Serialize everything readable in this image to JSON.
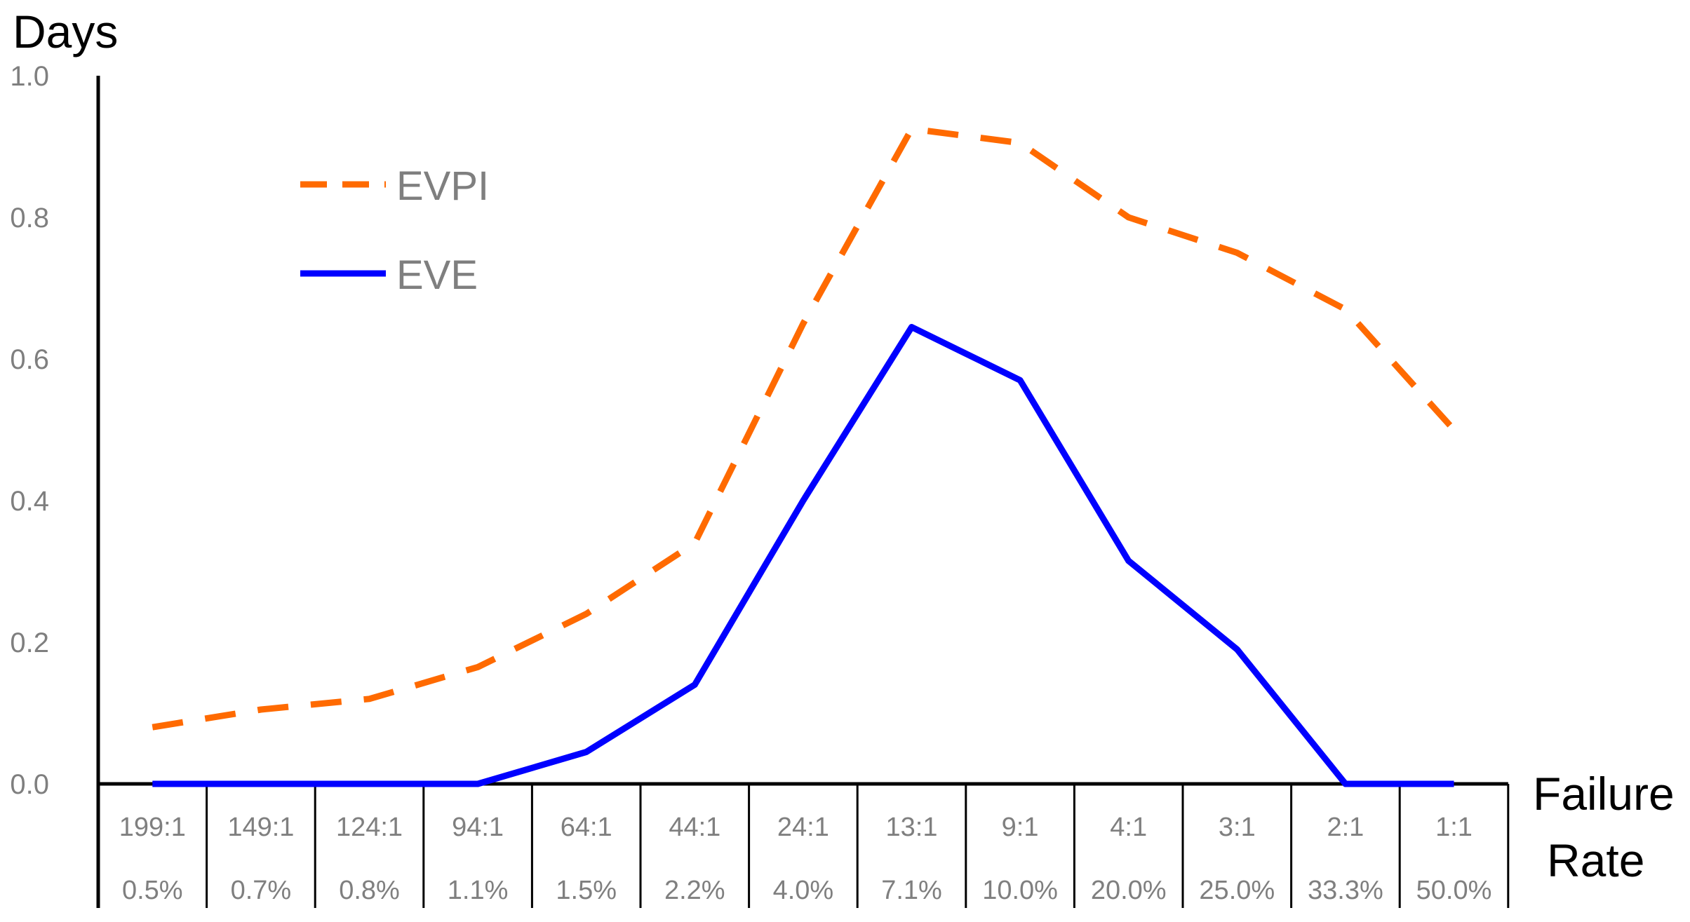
{
  "chart_data": {
    "type": "line",
    "title": "",
    "ylabel": "Days",
    "xlabel": "Failure Rate",
    "xlabel_lines": [
      "Failure",
      "Rate"
    ],
    "ylim": [
      0,
      1
    ],
    "yticks": [
      "0.0",
      "0.2",
      "0.4",
      "0.6",
      "0.8",
      "1.0"
    ],
    "ytick_values": [
      0,
      0.2,
      0.4,
      0.6,
      0.8,
      1.0
    ],
    "categories": [
      "199:1",
      "149:1",
      "124:1",
      "94:1",
      "64:1",
      "44:1",
      "24:1",
      "13:1",
      "9:1",
      "4:1",
      "3:1",
      "2:1",
      "1:1"
    ],
    "categories_pct": [
      "0.5%",
      "0.7%",
      "0.8%",
      "1.1%",
      "1.5%",
      "2.2%",
      "4.0%",
      "7.1%",
      "10.0%",
      "20.0%",
      "25.0%",
      "33.3%",
      "50.0%"
    ],
    "series": [
      {
        "name": "EVPI",
        "color": "#FF6A00",
        "style": "dashed",
        "values": [
          0.08,
          0.105,
          0.12,
          0.165,
          0.24,
          0.34,
          0.65,
          0.925,
          0.905,
          0.8,
          0.75,
          0.67,
          0.5
        ]
      },
      {
        "name": "EVE",
        "color": "#0000FF",
        "style": "solid",
        "values": [
          0.0,
          0.0,
          0.0,
          0.0,
          0.045,
          0.14,
          0.4,
          0.645,
          0.57,
          0.315,
          0.19,
          0.0,
          0.0
        ]
      }
    ],
    "legend_position": "top-left",
    "grid": false
  }
}
